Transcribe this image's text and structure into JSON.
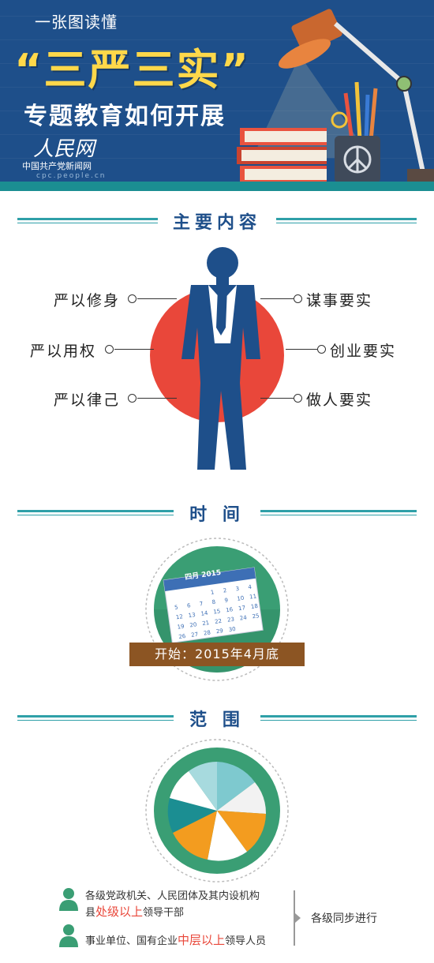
{
  "header": {
    "subtitle": "一张图读懂",
    "title": "“三严三实”",
    "title_line2": "专题教育如何开展",
    "logo_name": "人民网",
    "logo_org": "中国共产党新闻网",
    "logo_url": "cpc.people.cn"
  },
  "sections": {
    "main_content": {
      "title": "主要内容",
      "left_items": [
        "严以修身",
        "严以用权",
        "严以律己"
      ],
      "right_items": [
        "谋事要实",
        "创业要实",
        "做人要实"
      ]
    },
    "time": {
      "title": "时 间",
      "calendar_header": "四月 2015",
      "calendar_days": [
        "1",
        "2",
        "3",
        "4",
        "5",
        "6",
        "7",
        "8",
        "9",
        "10",
        "11",
        "12",
        "13",
        "14",
        "15",
        "16",
        "17",
        "18",
        "19",
        "20",
        "21",
        "22",
        "23",
        "24",
        "25",
        "26",
        "27",
        "28",
        "29",
        "30"
      ],
      "ribbon": "开始：2015年4月底"
    },
    "scope": {
      "title": "范 围",
      "row1_line1": "各级党政机关、人民团体及其内设机构",
      "row1_prefix": "县",
      "row1_highlight": "处级以上",
      "row1_suffix": "领导干部",
      "row2_prefix": "事业单位、国有企业",
      "row2_highlight": "中层以上",
      "row2_suffix": "领导人员",
      "note": "各级同步进行"
    }
  },
  "colors": {
    "header_bg": "#1e4f8a",
    "title_yellow": "#ffd84a",
    "teal": "#2fa0a8",
    "red_circle": "#e9473a",
    "green_circle": "#3a9e74",
    "ribbon_brown": "#8c5523",
    "highlight": "#e9473a"
  },
  "icons": {
    "lamp": "desk-lamp-icon",
    "books": "book-stack-icon",
    "pen_cup": "pen-cup-icon",
    "figure": "businessman-icon",
    "calendar": "calendar-icon",
    "pie": "pie-chart-icon",
    "person": "person-icon"
  }
}
